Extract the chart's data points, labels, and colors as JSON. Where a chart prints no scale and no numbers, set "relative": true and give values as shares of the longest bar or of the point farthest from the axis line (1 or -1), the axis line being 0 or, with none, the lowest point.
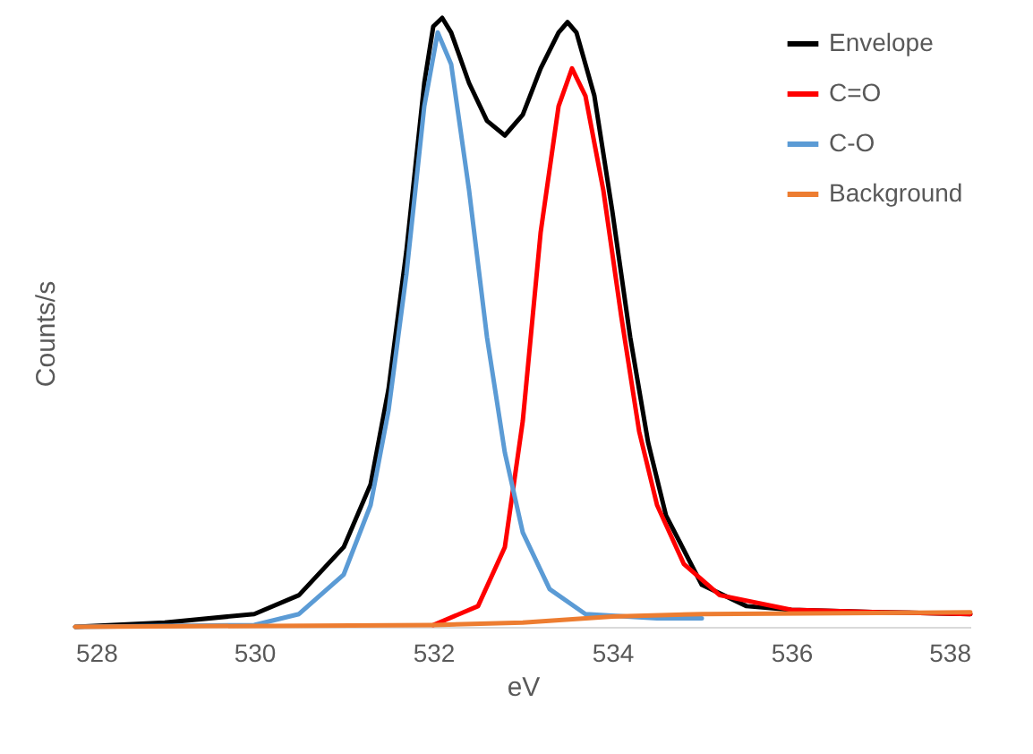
{
  "chart_data": {
    "type": "line",
    "relative": true,
    "xlabel": "eV",
    "ylabel": "Counts/s",
    "xlim": [
      528,
      538
    ],
    "xticks": [
      528,
      530,
      532,
      534,
      536,
      538
    ],
    "legend": "top right",
    "line_style": "solid",
    "series": [
      {
        "name": "Envelope",
        "color": "#000000",
        "x": [
          528,
          529,
          530,
          530.5,
          531,
          531.3,
          531.5,
          531.7,
          531.9,
          532.0,
          532.1,
          532.2,
          532.4,
          532.6,
          532.8,
          533.0,
          533.2,
          533.4,
          533.5,
          533.6,
          533.8,
          534.0,
          534.2,
          534.4,
          534.6,
          535.0,
          535.5,
          536,
          537,
          538
        ],
        "values": [
          0,
          0.007,
          0.021,
          0.052,
          0.131,
          0.234,
          0.39,
          0.617,
          0.893,
          0.986,
          1,
          0.976,
          0.893,
          0.831,
          0.807,
          0.841,
          0.917,
          0.976,
          0.993,
          0.976,
          0.872,
          0.683,
          0.476,
          0.303,
          0.183,
          0.069,
          0.034,
          0.028,
          0.024,
          0.021
        ]
      },
      {
        "name": "C=O",
        "color": "#ff0000",
        "x": [
          532.0,
          532.5,
          532.8,
          533.0,
          533.2,
          533.4,
          533.55,
          533.7,
          533.9,
          534.1,
          534.3,
          534.5,
          534.8,
          535.2,
          536,
          537,
          538
        ],
        "values": [
          0.003,
          0.034,
          0.131,
          0.338,
          0.648,
          0.855,
          0.917,
          0.872,
          0.717,
          0.51,
          0.321,
          0.2,
          0.103,
          0.052,
          0.028,
          0.024,
          0.021
        ]
      },
      {
        "name": "C-O",
        "color": "#5b9bd5",
        "x": [
          528,
          530,
          530.5,
          531,
          531.3,
          531.5,
          531.7,
          531.9,
          532.05,
          532.2,
          532.4,
          532.6,
          532.8,
          533.0,
          533.3,
          533.7,
          534.5,
          535
        ],
        "values": [
          0,
          0.003,
          0.021,
          0.086,
          0.2,
          0.355,
          0.579,
          0.855,
          0.976,
          0.924,
          0.717,
          0.476,
          0.286,
          0.155,
          0.062,
          0.021,
          0.014,
          0.014
        ]
      },
      {
        "name": "Background",
        "color": "#ed7d31",
        "x": [
          528,
          532,
          533,
          534,
          535,
          538
        ],
        "values": [
          0,
          0.003,
          0.007,
          0.017,
          0.021,
          0.024
        ]
      }
    ]
  }
}
